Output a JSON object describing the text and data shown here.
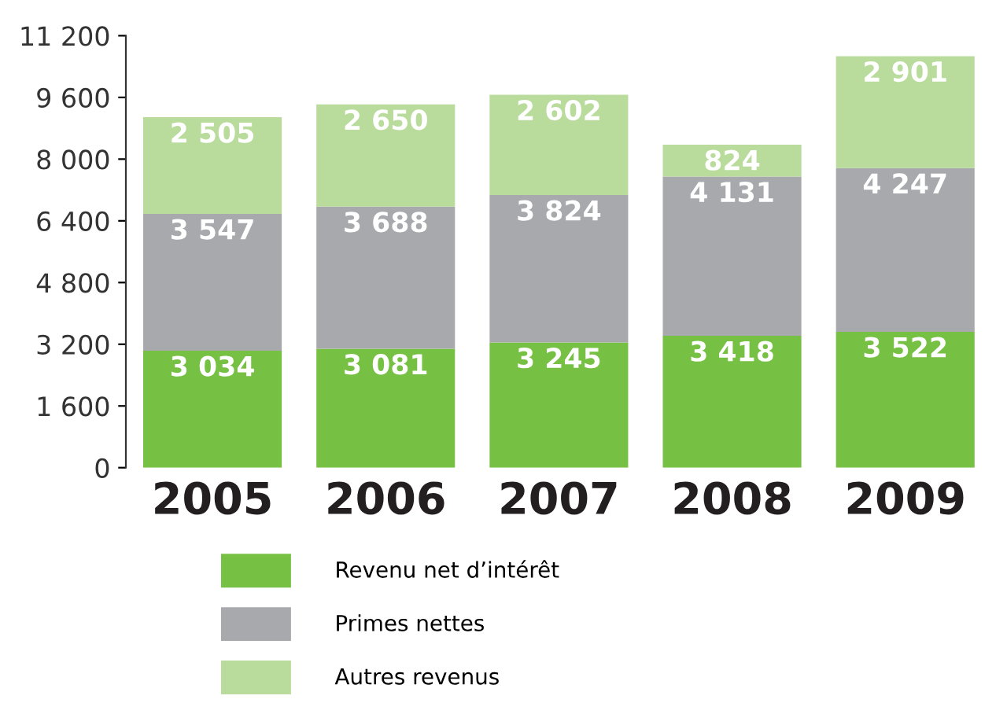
{
  "chart_data": {
    "type": "bar",
    "stacked": true,
    "categories": [
      "2005",
      "2006",
      "2007",
      "2008",
      "2009"
    ],
    "series": [
      {
        "name": "Revenu net d’intérêt",
        "color": "#76c043",
        "values": [
          3034,
          3081,
          3245,
          3418,
          3522
        ],
        "value_labels": [
          "3 034",
          "3 081",
          "3 245",
          "3 418",
          "3 522"
        ]
      },
      {
        "name": "Primes nettes",
        "color": "#a7a9ac",
        "values": [
          3547,
          3688,
          3824,
          4131,
          4247
        ],
        "value_labels": [
          "3 547",
          "3 688",
          "3 824",
          "4 131",
          "4 247"
        ]
      },
      {
        "name": "Autres revenus",
        "color": "#b9dc9c",
        "values": [
          2505,
          2650,
          2602,
          824,
          2901
        ],
        "value_labels": [
          "2 505",
          "2 650",
          "2 602",
          "824",
          "2 901"
        ]
      }
    ],
    "ylim": [
      0,
      11200
    ],
    "yticks": [
      0,
      {
        "value": 1600,
        "label": "1 600"
      },
      {
        "value": 3200,
        "label": "3 200"
      },
      {
        "value": 4800,
        "label": "4 800"
      },
      {
        "value": 6400,
        "label": "6 400"
      },
      {
        "value": 8000,
        "label": "8 000"
      },
      {
        "value": 9600,
        "label": "9 600"
      },
      {
        "value": 11200,
        "label": "11 200"
      }
    ],
    "grid": false,
    "legend": "bottom"
  }
}
